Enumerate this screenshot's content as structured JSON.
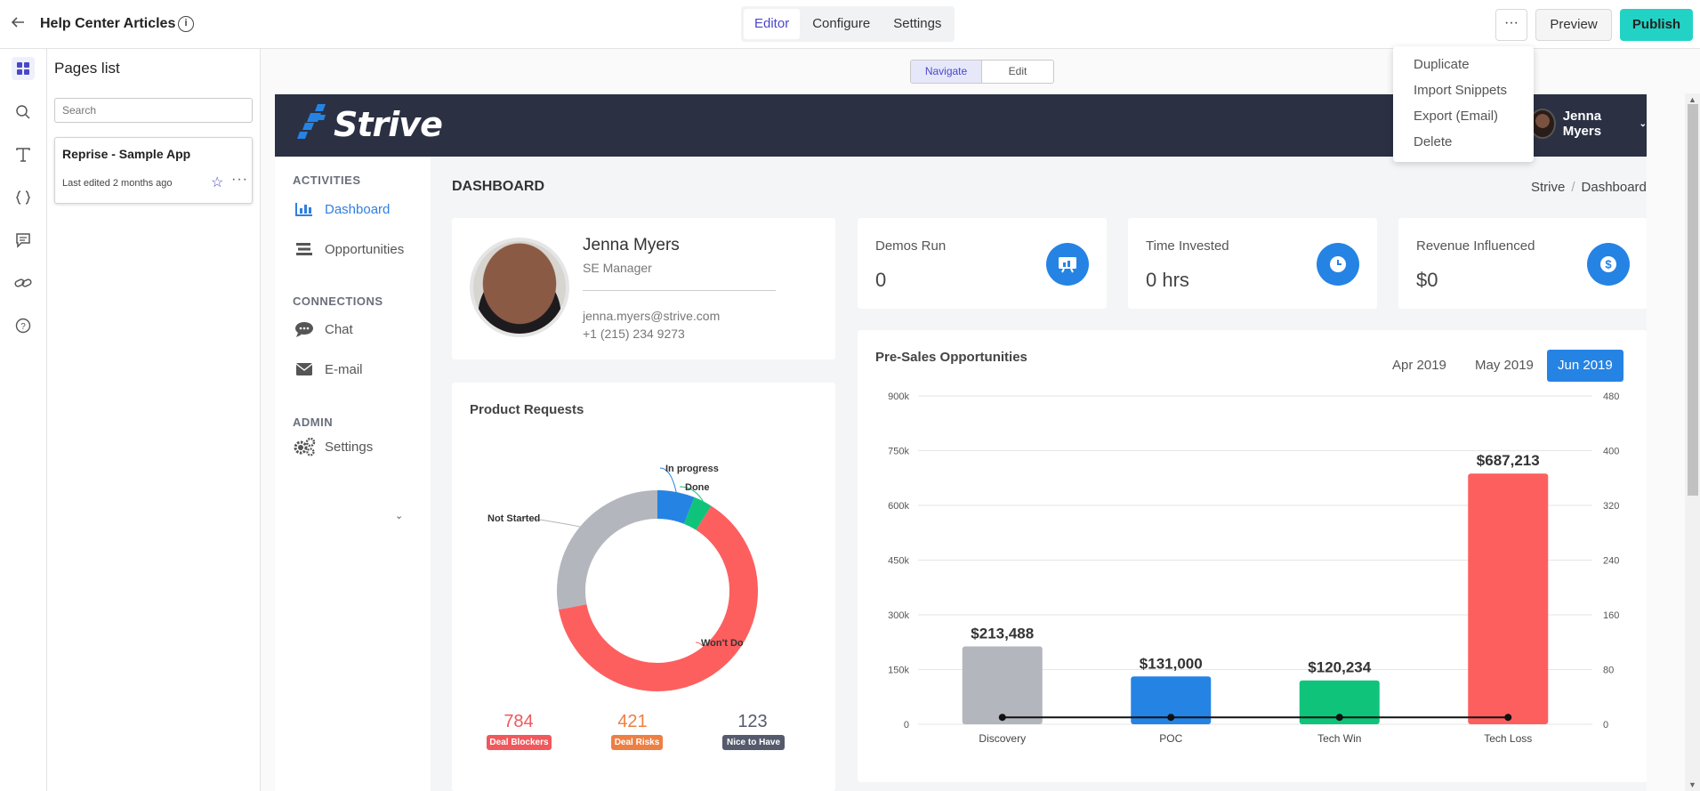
{
  "topbar": {
    "title": "Help Center Articles",
    "tabs": [
      "Editor",
      "Configure",
      "Settings"
    ],
    "more_label": "···",
    "preview_label": "Preview",
    "publish_label": "Publish",
    "menu": [
      "Duplicate",
      "Import Snippets",
      "Export (Email)",
      "Delete"
    ]
  },
  "pages": {
    "heading": "Pages list",
    "search_placeholder": "Search",
    "card_title": "Reprise - Sample App",
    "card_edited": "Last edited 2 months ago"
  },
  "mode": {
    "navigate": "Navigate",
    "edit": "Edit"
  },
  "app": {
    "brand": "Strive",
    "user": "Jenna Myers",
    "sections": {
      "activities": "ACTIVITIES",
      "connections": "CONNECTIONS",
      "admin": "ADMIN"
    },
    "nav": [
      "Dashboard",
      "Opportunities",
      "Chat",
      "E-mail",
      "Settings"
    ],
    "page_title": "DASHBOARD",
    "breadcrumb": [
      "Strive",
      "Dashboard"
    ],
    "profile": {
      "name": "Jenna Myers",
      "role": "SE Manager",
      "email": "jenna.myers@strive.com",
      "phone": "+1 (215) 234 9273"
    },
    "stats": [
      {
        "label": "Demos Run",
        "value": "0",
        "icon": "presentation-icon"
      },
      {
        "label": "Time Invested",
        "value": "0 hrs",
        "icon": "clock-icon"
      },
      {
        "label": "Revenue Influenced",
        "value": "$0",
        "icon": "dollar-icon"
      }
    ],
    "product_requests": {
      "title": "Product Requests",
      "counts": [
        {
          "value": "784",
          "label": "Deal Blockers",
          "color": "#f0585c"
        },
        {
          "value": "421",
          "label": "Deal Risks",
          "color": "#ed7f43"
        },
        {
          "value": "123",
          "label": "Nice to Have",
          "color": "#555a6d"
        }
      ]
    },
    "presales": {
      "title": "Pre-Sales Opportunities",
      "months": [
        "Apr 2019",
        "May 2019",
        "Jun 2019"
      ],
      "selected_month": "Jun 2019"
    }
  },
  "colors": {
    "accent": "#2583e4",
    "publish": "#22d3c5",
    "header": "#2b3043",
    "editor_accent": "#4b47c9"
  },
  "chart_data": [
    {
      "type": "pie",
      "title": "Product Requests",
      "categories": [
        "In progress",
        "Done",
        "Won't Do",
        "Not Started"
      ],
      "values": [
        6,
        3,
        63,
        28
      ],
      "colors": [
        "#2583e4",
        "#0fc47a",
        "#fd5f5f",
        "#b3b6bd"
      ]
    },
    {
      "type": "bar",
      "title": "Pre-Sales Opportunities",
      "categories": [
        "Discovery",
        "POC",
        "Tech Win",
        "Tech Loss"
      ],
      "series": [
        {
          "values": [
            213488,
            131000,
            120234,
            687213
          ],
          "colors": [
            "#b3b6bd",
            "#2583e4",
            "#0fc47a",
            "#fd5f5f"
          ]
        },
        {
          "type": "line",
          "axis": "right",
          "values": [
            1,
            1,
            1,
            1
          ]
        }
      ],
      "data_labels": [
        "$213,488",
        "$131,000",
        "$120,234",
        "$687,213"
      ],
      "ylim": [
        0,
        900000
      ],
      "yticks": [
        "0",
        "150k",
        "300k",
        "450k",
        "600k",
        "750k",
        "900k"
      ],
      "y2lim": [
        0,
        480
      ],
      "y2ticks": [
        "0",
        "80",
        "160",
        "240",
        "320",
        "400",
        "480"
      ],
      "grid": true
    }
  ]
}
